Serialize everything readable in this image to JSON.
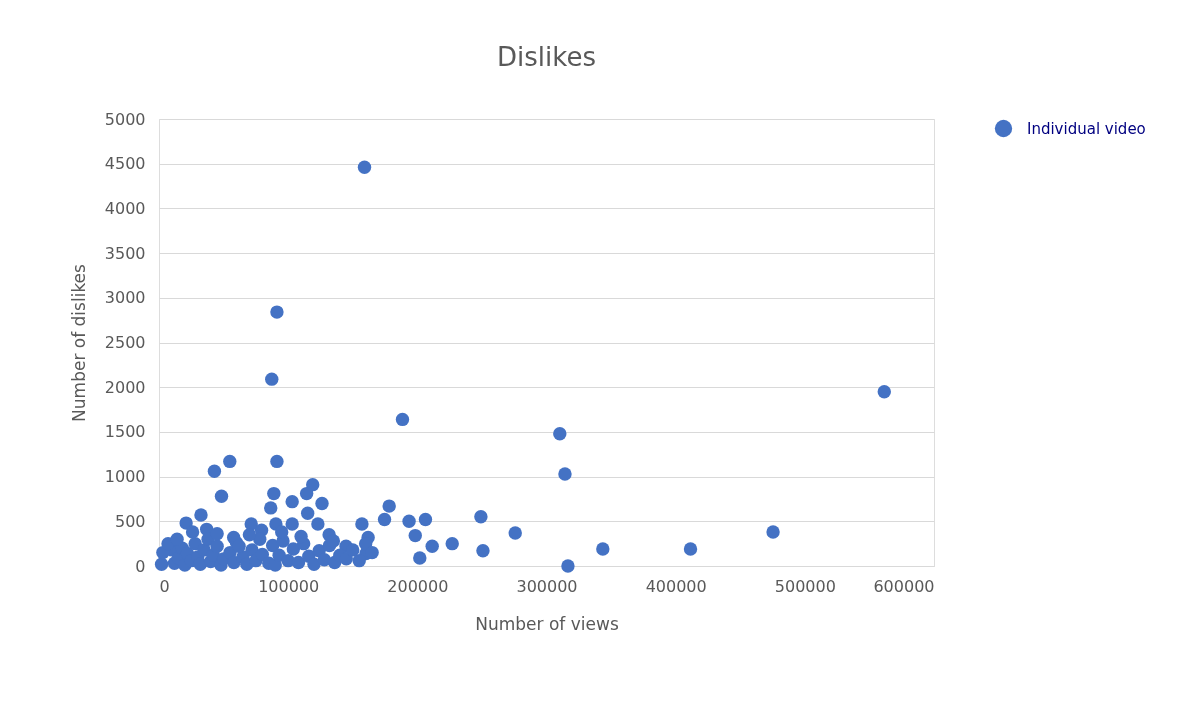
{
  "chart_data": {
    "type": "scatter",
    "title": "Dislikes",
    "xlabel": "Number  of views",
    "ylabel": "Number  of dislikes",
    "xlim": [
      0,
      600000
    ],
    "xticks": [
      0,
      100000,
      200000,
      300000,
      400000,
      500000,
      600000
    ],
    "ylim": [
      0,
      5000
    ],
    "yticks": [
      0,
      500,
      1000,
      1500,
      2000,
      2500,
      3000,
      3500,
      4000,
      4500,
      5000
    ],
    "grid": "y",
    "legend": "right",
    "marker": "circle",
    "series": [
      {
        "name": "Individual video",
        "color": "#4472c4",
        "x": [
          159100,
          91300,
          87300,
          188500,
          310300,
          314300,
          561500,
          475400,
          411500,
          343600,
          316600,
          275800,
          250800,
          249200,
          227000,
          211500,
          201900,
          206300,
          198400,
          193600,
          178200,
          174600,
          157100,
          161900,
          160300,
          144800,
          131700,
          126200,
          119000,
          114300,
          103100,
          115100,
          91300,
          88900,
          86500,
          54800,
          42900,
          48400,
          32500,
          21000,
          57800,
          71400,
          36900,
          90500,
          123000,
          103100,
          79400,
          2000,
          10000,
          12000,
          15000,
          18000,
          20000,
          22000,
          25000,
          28000,
          30000,
          32000,
          35000,
          38000,
          40000,
          42000,
          45000,
          48000,
          50000,
          55000,
          58000,
          60000,
          65000,
          68000,
          72000,
          75000,
          78000,
          80000,
          85000,
          88000,
          90000,
          93000,
          96000,
          100000,
          104000,
          108000,
          112000,
          116000,
          120000,
          124000,
          128000,
          132000,
          136000,
          140000,
          145000,
          150000,
          155000,
          160000,
          165000,
          3000,
          7000,
          14000,
          26000,
          45000,
          70000,
          95000,
          110000,
          135000,
          62000
        ],
        "values": [
          4460,
          2840,
          2090,
          1640,
          1480,
          1030,
          1950,
          380,
          190,
          190,
          0,
          370,
          170,
          550,
          250,
          220,
          90,
          520,
          340,
          500,
          670,
          520,
          470,
          320,
          140,
          220,
          350,
          700,
          910,
          810,
          720,
          590,
          1170,
          810,
          650,
          1170,
          1060,
          780,
          570,
          480,
          320,
          470,
          410,
          470,
          470,
          470,
          400,
          20,
          180,
          30,
          90,
          200,
          10,
          140,
          60,
          250,
          100,
          20,
          180,
          300,
          50,
          120,
          220,
          10,
          80,
          150,
          40,
          260,
          100,
          20,
          180,
          60,
          300,
          130,
          30,
          230,
          10,
          120,
          280,
          60,
          190,
          40,
          250,
          110,
          20,
          170,
          70,
          230,
          40,
          120,
          80,
          180,
          60,
          250,
          150,
          150,
          250,
          300,
          380,
          360,
          350,
          380,
          330,
          280,
          220
        ]
      }
    ]
  }
}
